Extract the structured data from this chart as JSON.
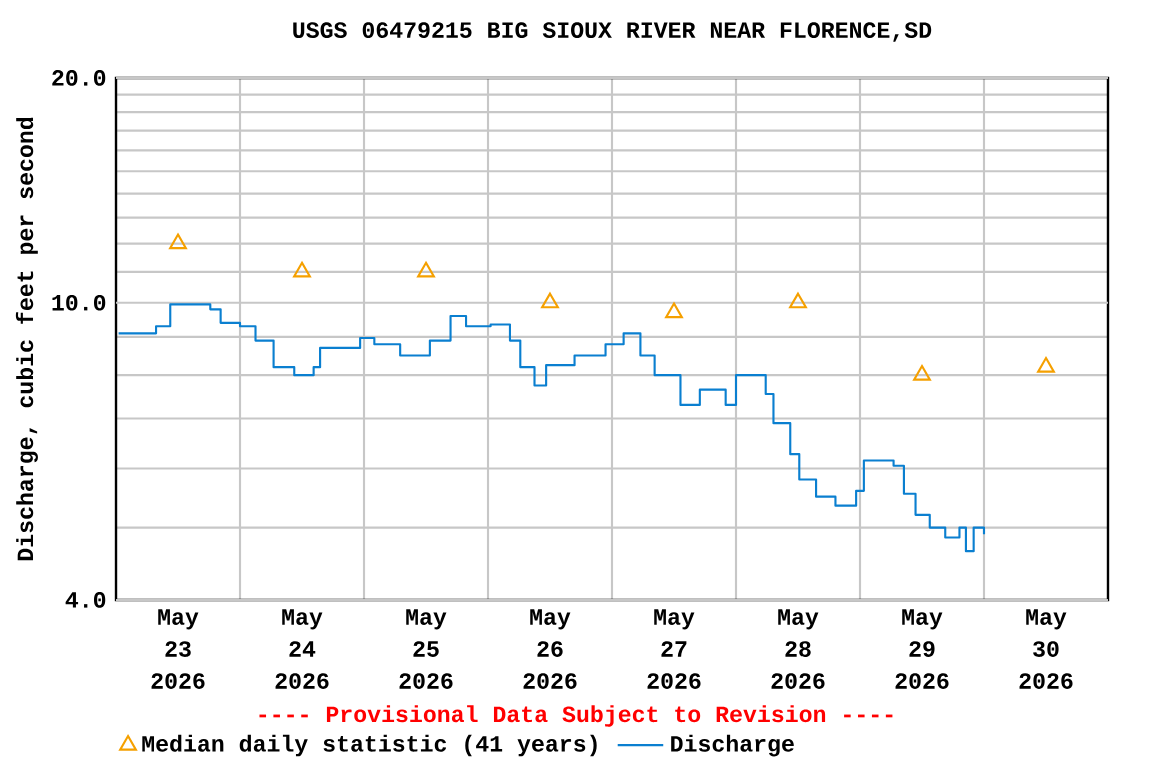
{
  "chart_data": {
    "type": "step",
    "title": "USGS 06479215 BIG SIOUX RIVER NEAR FLORENCE,SD",
    "ylabel": "Discharge, cubic feet per second",
    "annotations": [
      "---- Provisional Data Subject to Revision ----"
    ],
    "log": "y",
    "grid": true,
    "legend": "bottom",
    "xlim": [
      "2026-05-23T00:00",
      "2026-05-31T00:00"
    ],
    "xticks": [
      {
        "value": "2026-05-24T00:00",
        "label": null
      },
      {
        "value": "2026-05-25T00:00",
        "label": null
      },
      {
        "value": "2026-05-26T00:00",
        "label": null
      },
      {
        "value": "2026-05-27T00:00",
        "label": null
      },
      {
        "value": "2026-05-28T00:00",
        "label": null
      },
      {
        "value": "2026-05-29T00:00",
        "label": null
      },
      {
        "value": "2026-05-30T00:00",
        "label": null
      },
      {
        "value": "2026-05-23T12:00",
        "label": "May 23 2026"
      },
      {
        "value": "2026-05-24T12:00",
        "label": "May 24 2026"
      },
      {
        "value": "2026-05-25T12:00",
        "label": "May 25 2026"
      },
      {
        "value": "2026-05-26T12:00",
        "label": "May 26 2026"
      },
      {
        "value": "2026-05-27T12:00",
        "label": "May 27 2026"
      },
      {
        "value": "2026-05-28T12:00",
        "label": "May 28 2026"
      },
      {
        "value": "2026-05-29T12:00",
        "label": "May 29 2026"
      },
      {
        "value": "2026-05-30T12:00",
        "label": "May 30 2026"
      }
    ],
    "ylim": [
      4,
      20
    ],
    "yticks": [
      {
        "value": 4,
        "label": "4.0"
      },
      {
        "value": 5,
        "label": null
      },
      {
        "value": 6,
        "label": null
      },
      {
        "value": 7,
        "label": null
      },
      {
        "value": 8,
        "label": null
      },
      {
        "value": 9,
        "label": null
      },
      {
        "value": 10,
        "label": "10.0"
      },
      {
        "value": 11,
        "label": null
      },
      {
        "value": 12,
        "label": null
      },
      {
        "value": 13,
        "label": null
      },
      {
        "value": 14,
        "label": null
      },
      {
        "value": 15,
        "label": null
      },
      {
        "value": 16,
        "label": null
      },
      {
        "value": 17,
        "label": null
      },
      {
        "value": 18,
        "label": null
      },
      {
        "value": 19,
        "label": null
      },
      {
        "value": 20,
        "label": "20.0"
      }
    ],
    "series": [
      {
        "name": "Median daily statistic (41 years)",
        "type": "scatter",
        "marker": "triangle",
        "color": "#f5a000",
        "x": [
          "2026-05-23T12:00",
          "2026-05-24T12:00",
          "2026-05-25T12:00",
          "2026-05-26T12:00",
          "2026-05-27T12:00",
          "2026-05-28T12:00",
          "2026-05-29T12:00",
          "2026-05-30T12:00"
        ],
        "values": [
          12,
          11,
          11,
          10,
          9.7,
          10,
          8,
          8.2
        ]
      },
      {
        "name": "Discharge",
        "color": "#0a7fd0",
        "x": [
          "2026-05-23T00:30",
          "2026-05-23T07:45",
          "2026-05-23T10:30",
          "2026-05-23T18:15",
          "2026-05-23T20:15",
          "2026-05-24T00:00",
          "2026-05-24T03:00",
          "2026-05-24T06:30",
          "2026-05-24T10:30",
          "2026-05-24T14:15",
          "2026-05-24T15:30",
          "2026-05-24T23:15",
          "2026-05-25T02:00",
          "2026-05-25T07:00",
          "2026-05-25T11:30",
          "2026-05-25T12:45",
          "2026-05-25T16:45",
          "2026-05-25T19:45",
          "2026-05-26T00:30",
          "2026-05-26T04:15",
          "2026-05-26T06:15",
          "2026-05-26T09:00",
          "2026-05-26T11:15",
          "2026-05-26T16:45",
          "2026-05-26T17:45",
          "2026-05-26T21:00",
          "2026-05-26T22:45",
          "2026-05-27T02:15",
          "2026-05-27T05:30",
          "2026-05-27T08:15",
          "2026-05-27T13:15",
          "2026-05-27T17:00",
          "2026-05-27T22:00",
          "2026-05-28T00:00",
          "2026-05-28T03:30",
          "2026-05-28T05:45",
          "2026-05-28T07:15",
          "2026-05-28T10:30",
          "2026-05-28T12:15",
          "2026-05-28T15:30",
          "2026-05-28T19:15",
          "2026-05-28T23:15",
          "2026-05-29T00:45",
          "2026-05-29T03:45",
          "2026-05-29T06:30",
          "2026-05-29T08:30",
          "2026-05-29T10:45",
          "2026-05-29T13:30",
          "2026-05-29T16:30",
          "2026-05-29T19:15",
          "2026-05-29T20:30",
          "2026-05-29T22:00",
          "2026-05-30T00:00"
        ],
        "values": [
          9.1,
          9.3,
          9.95,
          9.8,
          9.4,
          9.3,
          8.9,
          8.2,
          8.0,
          8.2,
          8.7,
          8.97,
          8.8,
          8.5,
          8.5,
          8.9,
          9.6,
          9.3,
          9.35,
          8.9,
          8.2,
          7.75,
          8.25,
          8.5,
          8.5,
          8.5,
          8.8,
          9.1,
          8.5,
          8.0,
          7.3,
          7.65,
          7.3,
          8.0,
          8.0,
          7.55,
          6.9,
          6.27,
          5.8,
          5.5,
          5.35,
          5.6,
          6.15,
          6.15,
          6.05,
          5.55,
          5.2,
          5.0,
          4.85,
          5.0,
          4.65,
          5.0,
          4.9
        ]
      }
    ]
  }
}
